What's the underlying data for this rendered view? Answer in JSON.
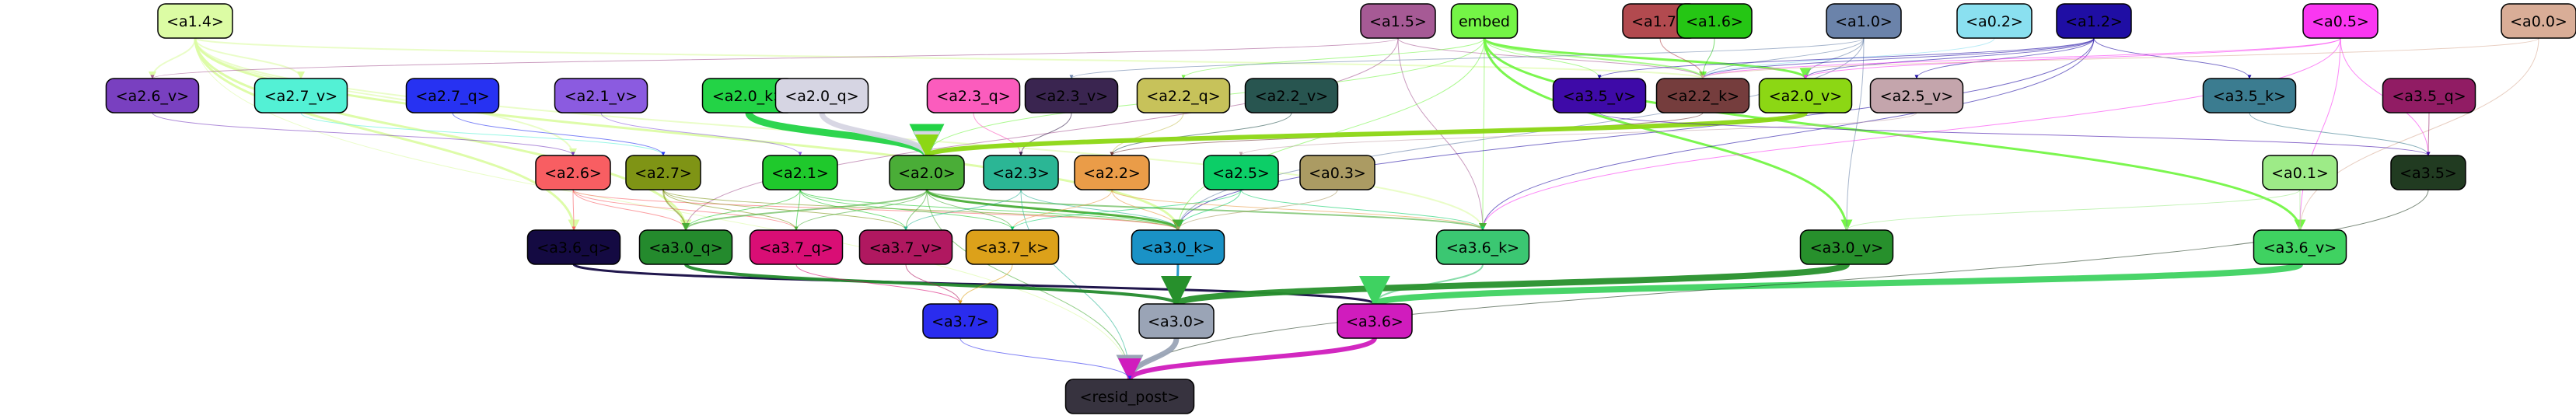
{
  "nodes": [
    {
      "id": "a1.4",
      "label": "<a1.4>",
      "fill": "#dcfca4",
      "text": "#000000"
    },
    {
      "id": "a1.5",
      "label": "<a1.5>",
      "fill": "#a65a95",
      "text": "#000000"
    },
    {
      "id": "embed",
      "label": "embed",
      "fill": "#74f546",
      "text": "#000000"
    },
    {
      "id": "a1.7",
      "label": "<a1.7>",
      "fill": "#b24a4f",
      "text": "#000000"
    },
    {
      "id": "a1.6",
      "label": "<a1.6>",
      "fill": "#25c614",
      "text": "#000000"
    },
    {
      "id": "a1.0",
      "label": "<a1.0>",
      "fill": "#6b83aa",
      "text": "#000000"
    },
    {
      "id": "a0.2",
      "label": "<a0.2>",
      "fill": "#8ae0f0",
      "text": "#000000"
    },
    {
      "id": "a1.2",
      "label": "<a1.2>",
      "fill": "#1f0ea4",
      "text": "#000000"
    },
    {
      "id": "a0.5",
      "label": "<a0.5>",
      "fill": "#fa37f1",
      "text": "#000000"
    },
    {
      "id": "a0.0",
      "label": "<a0.0>",
      "fill": "#d9ad97",
      "text": "#000000"
    },
    {
      "id": "a2.6_v",
      "label": "<a2.6_v>",
      "fill": "#7940c0",
      "text": "#000000"
    },
    {
      "id": "a2.7_v",
      "label": "<a2.7_v>",
      "fill": "#53f1d5",
      "text": "#000000"
    },
    {
      "id": "a2.7_q",
      "label": "<a2.7_q>",
      "fill": "#2732f2",
      "text": "#000000"
    },
    {
      "id": "a2.1_v",
      "label": "<a2.1_v>",
      "fill": "#8b5be0",
      "text": "#000000"
    },
    {
      "id": "a2.0_k",
      "label": "<a2.0_k>",
      "fill": "#23d346",
      "text": "#000000"
    },
    {
      "id": "a2.0_q",
      "label": "<a2.0_q>",
      "fill": "#d6d5e3",
      "text": "#000000"
    },
    {
      "id": "a2.3_q",
      "label": "<a2.3_q>",
      "fill": "#fb5cbd",
      "text": "#000000"
    },
    {
      "id": "a2.3_v",
      "label": "<a2.3_v>",
      "fill": "#3a2550",
      "text": "#000000"
    },
    {
      "id": "a2.2_q",
      "label": "<a2.2_q>",
      "fill": "#c7c25a",
      "text": "#000000"
    },
    {
      "id": "a2.2_v",
      "label": "<a2.2_v>",
      "fill": "#285550",
      "text": "#000000"
    },
    {
      "id": "a3.5_v",
      "label": "<a3.5_v>",
      "fill": "#3e0aa8",
      "text": "#000000"
    },
    {
      "id": "a2.2_k",
      "label": "<a2.2_k>",
      "fill": "#753d3d",
      "text": "#000000"
    },
    {
      "id": "a2.0_v",
      "label": "<a2.0_v>",
      "fill": "#8cd714",
      "text": "#000000"
    },
    {
      "id": "a2.5_v",
      "label": "<a2.5_v>",
      "fill": "#c4a5ac",
      "text": "#000000"
    },
    {
      "id": "a3.5_k",
      "label": "<a3.5_k>",
      "fill": "#3b7c90",
      "text": "#000000"
    },
    {
      "id": "a3.5_q",
      "label": "<a3.5_q>",
      "fill": "#911c64",
      "text": "#000000"
    },
    {
      "id": "a2.6",
      "label": "<a2.6>",
      "fill": "#f85e62",
      "text": "#000000"
    },
    {
      "id": "a2.7",
      "label": "<a2.7>",
      "fill": "#7f9415",
      "text": "#000000"
    },
    {
      "id": "a2.1",
      "label": "<a2.1>",
      "fill": "#1fc92c",
      "text": "#000000"
    },
    {
      "id": "a2.0",
      "label": "<a2.0>",
      "fill": "#4aad37",
      "text": "#000000"
    },
    {
      "id": "a2.3",
      "label": "<a2.3>",
      "fill": "#2bb695",
      "text": "#000000"
    },
    {
      "id": "a2.2",
      "label": "<a2.2>",
      "fill": "#ea9c48",
      "text": "#000000"
    },
    {
      "id": "a2.5",
      "label": "<a2.5>",
      "fill": "#0cce67",
      "text": "#000000"
    },
    {
      "id": "a0.3",
      "label": "<a0.3>",
      "fill": "#ab9b63",
      "text": "#000000"
    },
    {
      "id": "a0.1",
      "label": "<a0.1>",
      "fill": "#9deb87",
      "text": "#000000"
    },
    {
      "id": "a3.5",
      "label": "<a3.5>",
      "fill": "#213b21",
      "text": "#000000"
    },
    {
      "id": "a3.6_q",
      "label": "<a3.6_q>",
      "fill": "#140a42",
      "text": "#000000"
    },
    {
      "id": "a3.0_q",
      "label": "<a3.0_q>",
      "fill": "#248a2d",
      "text": "#000000"
    },
    {
      "id": "a3.7_q",
      "label": "<a3.7_q>",
      "fill": "#d90e75",
      "text": "#000000"
    },
    {
      "id": "a3.7_v",
      "label": "<a3.7_v>",
      "fill": "#b01860",
      "text": "#000000"
    },
    {
      "id": "a3.7_k",
      "label": "<a3.7_k>",
      "fill": "#dca11a",
      "text": "#000000"
    },
    {
      "id": "a3.0_k",
      "label": "<a3.0_k>",
      "fill": "#1a92c6",
      "text": "#000000"
    },
    {
      "id": "a3.6_k",
      "label": "<a3.6_k>",
      "fill": "#3bc772",
      "text": "#000000"
    },
    {
      "id": "a3.0_v",
      "label": "<a3.0_v>",
      "fill": "#27902c",
      "text": "#000000"
    },
    {
      "id": "a3.6_v",
      "label": "<a3.6_v>",
      "fill": "#3fd261",
      "text": "#000000"
    },
    {
      "id": "a3.0",
      "label": "<a3.0>",
      "fill": "#9aa4b6",
      "text": "#000000"
    },
    {
      "id": "a3.6",
      "label": "<a3.6>",
      "fill": "#d01cbd",
      "text": "#000000"
    },
    {
      "id": "a3.7",
      "label": "<a3.7>",
      "fill": "#2a2cee",
      "text": "#000000"
    },
    {
      "id": "resid_post",
      "label": "<resid_post>",
      "fill": "#37333f",
      "text": "#000000"
    }
  ],
  "edges": [
    {
      "from": "a1.4",
      "to": "a2.6_v",
      "color": "#dcfca4",
      "w": 2
    },
    {
      "from": "a1.4",
      "to": "a2.7_v",
      "color": "#dcfca4",
      "w": 2
    },
    {
      "from": "a1.4",
      "to": "a2.6",
      "color": "#dcfca4",
      "w": 2
    },
    {
      "from": "a1.4",
      "to": "a3.0_q",
      "color": "#dcfca4",
      "w": 3
    },
    {
      "from": "a1.4",
      "to": "a3.6_q",
      "color": "#dcfca4",
      "w": 3
    },
    {
      "from": "a1.4",
      "to": "a3.0_k",
      "color": "#dcfca4",
      "w": 3
    },
    {
      "from": "a1.4",
      "to": "a3.6_k",
      "color": "#dcfca4",
      "w": 2
    },
    {
      "from": "a1.4",
      "to": "a2.2_k",
      "color": "#dcfca4",
      "w": 2
    },
    {
      "from": "a1.4",
      "to": "resid_post",
      "color": "#dcfca4",
      "w": 1
    },
    {
      "from": "a1.5",
      "to": "a2.6_v",
      "color": "#a65a95",
      "w": 1
    },
    {
      "from": "a1.5",
      "to": "a2.2_k",
      "color": "#a65a95",
      "w": 1
    },
    {
      "from": "a1.5",
      "to": "a3.6_k",
      "color": "#a65a95",
      "w": 1
    },
    {
      "from": "a1.5",
      "to": "a3.0_q",
      "color": "#a65a95",
      "w": 1
    },
    {
      "from": "embed",
      "to": "a2.0_v",
      "color": "#74f546",
      "w": 3
    },
    {
      "from": "embed",
      "to": "a3.0_v",
      "color": "#74f546",
      "w": 3
    },
    {
      "from": "embed",
      "to": "a3.6_v",
      "color": "#74f546",
      "w": 3
    },
    {
      "from": "embed",
      "to": "a2.2_k",
      "color": "#74f546",
      "w": 2
    },
    {
      "from": "embed",
      "to": "a3.5_v",
      "color": "#74f546",
      "w": 1
    },
    {
      "from": "embed",
      "to": "a2.2_q",
      "color": "#74f546",
      "w": 1
    },
    {
      "from": "embed",
      "to": "a2.0",
      "color": "#74f546",
      "w": 1
    },
    {
      "from": "embed",
      "to": "a3.6_k",
      "color": "#74f546",
      "w": 1
    },
    {
      "from": "embed",
      "to": "a3.0_k",
      "color": "#74f546",
      "w": 1
    },
    {
      "from": "a1.7",
      "to": "a2.2_k",
      "color": "#b24a4f",
      "w": 1
    },
    {
      "from": "a1.6",
      "to": "a2.2_k",
      "color": "#25c614",
      "w": 1
    },
    {
      "from": "a1.0",
      "to": "a2.0_v",
      "color": "#6b83aa",
      "w": 1
    },
    {
      "from": "a1.0",
      "to": "a2.3_v",
      "color": "#6b83aa",
      "w": 1
    },
    {
      "from": "a1.0",
      "to": "a3.0_k",
      "color": "#6b83aa",
      "w": 1
    },
    {
      "from": "a1.0",
      "to": "a3.0_v",
      "color": "#6b83aa",
      "w": 1
    },
    {
      "from": "a1.0",
      "to": "a2.2_k",
      "color": "#6b83aa",
      "w": 1
    },
    {
      "from": "a0.2",
      "to": "a2.2_k",
      "color": "#8ae0f0",
      "w": 1
    },
    {
      "from": "a1.2",
      "to": "a2.0_v",
      "color": "#1f0ea4",
      "w": 1
    },
    {
      "from": "a1.2",
      "to": "a2.5_v",
      "color": "#1f0ea4",
      "w": 1
    },
    {
      "from": "a1.2",
      "to": "a3.5_k",
      "color": "#1f0ea4",
      "w": 1
    },
    {
      "from": "a1.2",
      "to": "a3.6_k",
      "color": "#1f0ea4",
      "w": 1
    },
    {
      "from": "a1.2",
      "to": "a3.0_k",
      "color": "#1f0ea4",
      "w": 1
    },
    {
      "from": "a1.2",
      "to": "a2.2_k",
      "color": "#1f0ea4",
      "w": 1
    },
    {
      "from": "a1.2",
      "to": "a3.5_v",
      "color": "#1f0ea4",
      "w": 1
    },
    {
      "from": "a0.5",
      "to": "a2.2_k",
      "color": "#fa37f1",
      "w": 1
    },
    {
      "from": "a0.5",
      "to": "a3.6_v",
      "color": "#fa37f1",
      "w": 1
    },
    {
      "from": "a0.5",
      "to": "a3.5",
      "color": "#fa37f1",
      "w": 1
    },
    {
      "from": "a0.5",
      "to": "a3.6_k",
      "color": "#fa37f1",
      "w": 1
    },
    {
      "from": "a0.5",
      "to": "a2.0_v",
      "color": "#fa37f1",
      "w": 1
    },
    {
      "from": "a0.0",
      "to": "a2.2_k",
      "color": "#d9ad97",
      "w": 1
    },
    {
      "from": "a0.0",
      "to": "a3.6_v",
      "color": "#d9ad97",
      "w": 1
    },
    {
      "from": "a2.6_v",
      "to": "a2.6",
      "color": "#7940c0",
      "w": 1
    },
    {
      "from": "a2.7_v",
      "to": "a2.7",
      "color": "#53f1d5",
      "w": 1
    },
    {
      "from": "a2.7_q",
      "to": "a2.7",
      "color": "#2732f2",
      "w": 1
    },
    {
      "from": "a2.1_v",
      "to": "a2.1",
      "color": "#8b5be0",
      "w": 1
    },
    {
      "from": "a2.0_k",
      "to": "a2.0",
      "color": "#23d346",
      "w": 9
    },
    {
      "from": "a2.0_q",
      "to": "a2.0",
      "color": "#d6d5e3",
      "w": 7
    },
    {
      "from": "a2.3_q",
      "to": "a2.3",
      "color": "#fb5cbd",
      "w": 1
    },
    {
      "from": "a2.3_v",
      "to": "a2.3",
      "color": "#3a2550",
      "w": 1
    },
    {
      "from": "a2.2_q",
      "to": "a2.2",
      "color": "#c7c25a",
      "w": 1
    },
    {
      "from": "a2.2_v",
      "to": "a2.2",
      "color": "#285550",
      "w": 1
    },
    {
      "from": "a2.2_k",
      "to": "a2.2",
      "color": "#753d3d",
      "w": 1
    },
    {
      "from": "a2.0_v",
      "to": "a2.0",
      "color": "#8cd714",
      "w": 6
    },
    {
      "from": "a2.5_v",
      "to": "a2.5",
      "color": "#c4a5ac",
      "w": 1
    },
    {
      "from": "a3.5_k",
      "to": "a3.5",
      "color": "#3b7c90",
      "w": 1
    },
    {
      "from": "a3.5_q",
      "to": "a3.5",
      "color": "#911c64",
      "w": 1
    },
    {
      "from": "a3.5_v",
      "to": "a3.5",
      "color": "#3e0aa8",
      "w": 1
    },
    {
      "from": "a2.6",
      "to": "a3.6_q",
      "color": "#f85e62",
      "w": 1
    },
    {
      "from": "a2.6",
      "to": "a3.0_q",
      "color": "#f85e62",
      "w": 1
    },
    {
      "from": "a2.6",
      "to": "a3.7_q",
      "color": "#f85e62",
      "w": 1
    },
    {
      "from": "a2.6",
      "to": "a3.0_k",
      "color": "#f85e62",
      "w": 1
    },
    {
      "from": "a2.7",
      "to": "a3.0_q",
      "color": "#7f9415",
      "w": 2
    },
    {
      "from": "a2.7",
      "to": "a3.7_q",
      "color": "#7f9415",
      "w": 1
    },
    {
      "from": "a2.7",
      "to": "a3.7_v",
      "color": "#7f9415",
      "w": 1
    },
    {
      "from": "a2.7",
      "to": "a3.0_k",
      "color": "#7f9415",
      "w": 1
    },
    {
      "from": "a2.1",
      "to": "a3.0_q",
      "color": "#1fc92c",
      "w": 1
    },
    {
      "from": "a2.1",
      "to": "a3.7_q",
      "color": "#1fc92c",
      "w": 1
    },
    {
      "from": "a2.1",
      "to": "a3.7_v",
      "color": "#1fc92c",
      "w": 1
    },
    {
      "from": "a2.1",
      "to": "a3.7_k",
      "color": "#1fc92c",
      "w": 1
    },
    {
      "from": "a2.1",
      "to": "a3.0_k",
      "color": "#1fc92c",
      "w": 1
    },
    {
      "from": "a2.0",
      "to": "a3.0_q",
      "color": "#4aad37",
      "w": 2
    },
    {
      "from": "a2.0",
      "to": "a3.7_q",
      "color": "#4aad37",
      "w": 1
    },
    {
      "from": "a2.0",
      "to": "a3.7_v",
      "color": "#4aad37",
      "w": 1
    },
    {
      "from": "a2.0",
      "to": "a3.7_k",
      "color": "#4aad37",
      "w": 1
    },
    {
      "from": "a2.0",
      "to": "a3.0_k",
      "color": "#4aad37",
      "w": 3
    },
    {
      "from": "a2.0",
      "to": "a3.6_k",
      "color": "#4aad37",
      "w": 2
    },
    {
      "from": "a2.0",
      "to": "resid_post",
      "color": "#4aad37",
      "w": 1
    },
    {
      "from": "a2.3",
      "to": "a3.7_v",
      "color": "#2bb695",
      "w": 1
    },
    {
      "from": "a2.3",
      "to": "a3.0_k",
      "color": "#2bb695",
      "w": 1
    },
    {
      "from": "a2.3",
      "to": "resid_post",
      "color": "#2bb695",
      "w": 1
    },
    {
      "from": "a2.2",
      "to": "a3.7_k",
      "color": "#ea9c48",
      "w": 1
    },
    {
      "from": "a2.2",
      "to": "a3.0_k",
      "color": "#ea9c48",
      "w": 1
    },
    {
      "from": "a2.2",
      "to": "a3.6_k",
      "color": "#ea9c48",
      "w": 1
    },
    {
      "from": "a2.5",
      "to": "a3.0_k",
      "color": "#0cce67",
      "w": 1
    },
    {
      "from": "a2.5",
      "to": "a3.6_k",
      "color": "#0cce67",
      "w": 1
    },
    {
      "from": "a2.5",
      "to": "a3.7_k",
      "color": "#0cce67",
      "w": 1
    },
    {
      "from": "a0.3",
      "to": "a3.0_k",
      "color": "#ab9b63",
      "w": 1
    },
    {
      "from": "a0.1",
      "to": "a3.6_v",
      "color": "#9deb87",
      "w": 1
    },
    {
      "from": "a0.1",
      "to": "a3.0_v",
      "color": "#9deb87",
      "w": 1
    },
    {
      "from": "a3.6_q",
      "to": "a3.6",
      "color": "#140a42",
      "w": 3
    },
    {
      "from": "a3.0_q",
      "to": "a3.0",
      "color": "#248a2d",
      "w": 4
    },
    {
      "from": "a3.7_q",
      "to": "a3.7",
      "color": "#d90e75",
      "w": 1
    },
    {
      "from": "a3.7_v",
      "to": "a3.7",
      "color": "#b01860",
      "w": 1
    },
    {
      "from": "a3.7_k",
      "to": "a3.7",
      "color": "#dca11a",
      "w": 1
    },
    {
      "from": "a3.0_k",
      "to": "a3.0",
      "color": "#1a92c6",
      "w": 3
    },
    {
      "from": "a3.6_k",
      "to": "a3.6",
      "color": "#3bc772",
      "w": 2
    },
    {
      "from": "a3.0_v",
      "to": "a3.0",
      "color": "#27902c",
      "w": 8
    },
    {
      "from": "a3.6_v",
      "to": "a3.6",
      "color": "#3fd261",
      "w": 8
    },
    {
      "from": "a3.5",
      "to": "resid_post",
      "color": "#213b21",
      "w": 1
    },
    {
      "from": "a3.0",
      "to": "resid_post",
      "color": "#9aa4b6",
      "w": 7
    },
    {
      "from": "a3.6",
      "to": "resid_post",
      "color": "#d01cbd",
      "w": 6
    },
    {
      "from": "a3.7",
      "to": "resid_post",
      "color": "#2a2cee",
      "w": 1
    }
  ]
}
